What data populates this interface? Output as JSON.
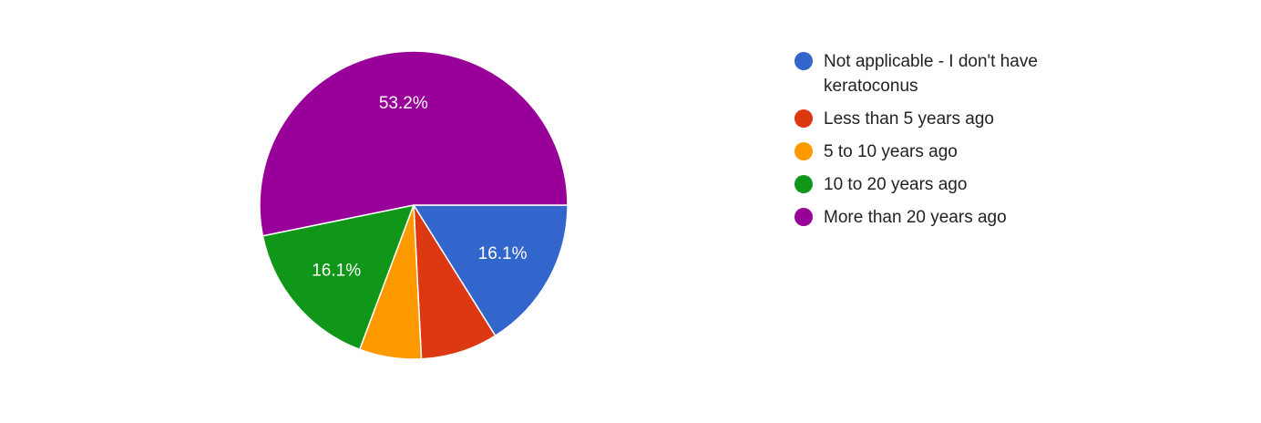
{
  "chart_data": {
    "type": "pie",
    "categories": [
      "Not applicable - I don't have keratoconus",
      "Less than 5 years ago",
      "5 to 10 years ago",
      "10 to 20 years ago",
      "More than 20 years ago"
    ],
    "values": [
      16.1,
      8.1,
      6.5,
      16.1,
      53.2
    ],
    "value_labels": [
      "16.1%",
      null,
      null,
      "16.1%",
      "53.2%"
    ],
    "colors": [
      "#3366cc",
      "#dc3912",
      "#ff9900",
      "#109618",
      "#990099"
    ],
    "legend": "right"
  }
}
